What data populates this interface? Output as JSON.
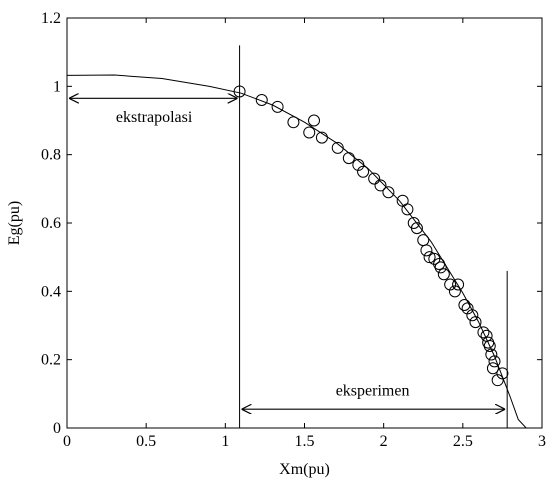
{
  "chart_data": {
    "type": "scatter",
    "xlabel": "Xm(pu)",
    "ylabel": "Eg(pu)",
    "xlim": [
      0,
      3
    ],
    "ylim": [
      0,
      1.2
    ],
    "x_ticks": [
      0,
      0.5,
      1,
      1.5,
      2,
      2.5,
      3
    ],
    "x_tick_labels": [
      "0",
      "0.5",
      "1",
      "1.5",
      "2",
      "2.5",
      "3"
    ],
    "y_ticks": [
      0,
      0.2,
      0.4,
      0.6,
      0.8,
      1,
      1.2
    ],
    "y_tick_labels": [
      "0",
      "0.2",
      "0.4",
      "0.6",
      "0.8",
      "1",
      "1.2"
    ],
    "grid": false,
    "series": [
      {
        "marker": "open-circle",
        "x": [
          1.09,
          1.23,
          1.33,
          1.43,
          1.53,
          1.56,
          1.61,
          1.71,
          1.78,
          1.84,
          1.87,
          1.94,
          1.98,
          2.03,
          2.12,
          2.15,
          2.19,
          2.21,
          2.25,
          2.27,
          2.29,
          2.32,
          2.35,
          2.36,
          2.38,
          2.42,
          2.45,
          2.47,
          2.51,
          2.53,
          2.56,
          2.58,
          2.63,
          2.65,
          2.66,
          2.67,
          2.68,
          2.7,
          2.72,
          2.75,
          2.69
        ],
        "y": [
          0.985,
          0.96,
          0.94,
          0.895,
          0.865,
          0.9,
          0.85,
          0.82,
          0.79,
          0.77,
          0.75,
          0.73,
          0.71,
          0.69,
          0.665,
          0.64,
          0.6,
          0.585,
          0.55,
          0.52,
          0.5,
          0.495,
          0.48,
          0.47,
          0.45,
          0.42,
          0.4,
          0.42,
          0.36,
          0.35,
          0.33,
          0.31,
          0.28,
          0.27,
          0.25,
          0.24,
          0.215,
          0.195,
          0.14,
          0.16,
          0.175
        ]
      },
      {
        "style": "line",
        "x": [
          0,
          0.3,
          0.6,
          0.9,
          1.1,
          1.3,
          1.5,
          1.7,
          1.9,
          2.1,
          2.3,
          2.5,
          2.6,
          2.7,
          2.8,
          2.85,
          2.9
        ],
        "y": [
          1.032,
          1.033,
          1.023,
          1.0,
          0.98,
          0.945,
          0.895,
          0.835,
          0.76,
          0.665,
          0.545,
          0.395,
          0.31,
          0.21,
          0.09,
          0.025,
          0.0
        ]
      }
    ],
    "annotations": [
      {
        "text": "ekstrapolasi",
        "arrow_from_x": 0,
        "arrow_to_x": 1.09,
        "y": 0.965,
        "text_x": 0.55,
        "text_y": 0.895
      },
      {
        "text": "eksperimen",
        "arrow_from_x": 1.09,
        "arrow_to_x": 2.78,
        "y": 0.055,
        "text_x": 1.93,
        "text_y": 0.095
      }
    ],
    "vertical_lines": [
      {
        "x": 1.09,
        "y_top": 1.12
      },
      {
        "x": 2.78,
        "y_top": 0.46
      }
    ]
  }
}
